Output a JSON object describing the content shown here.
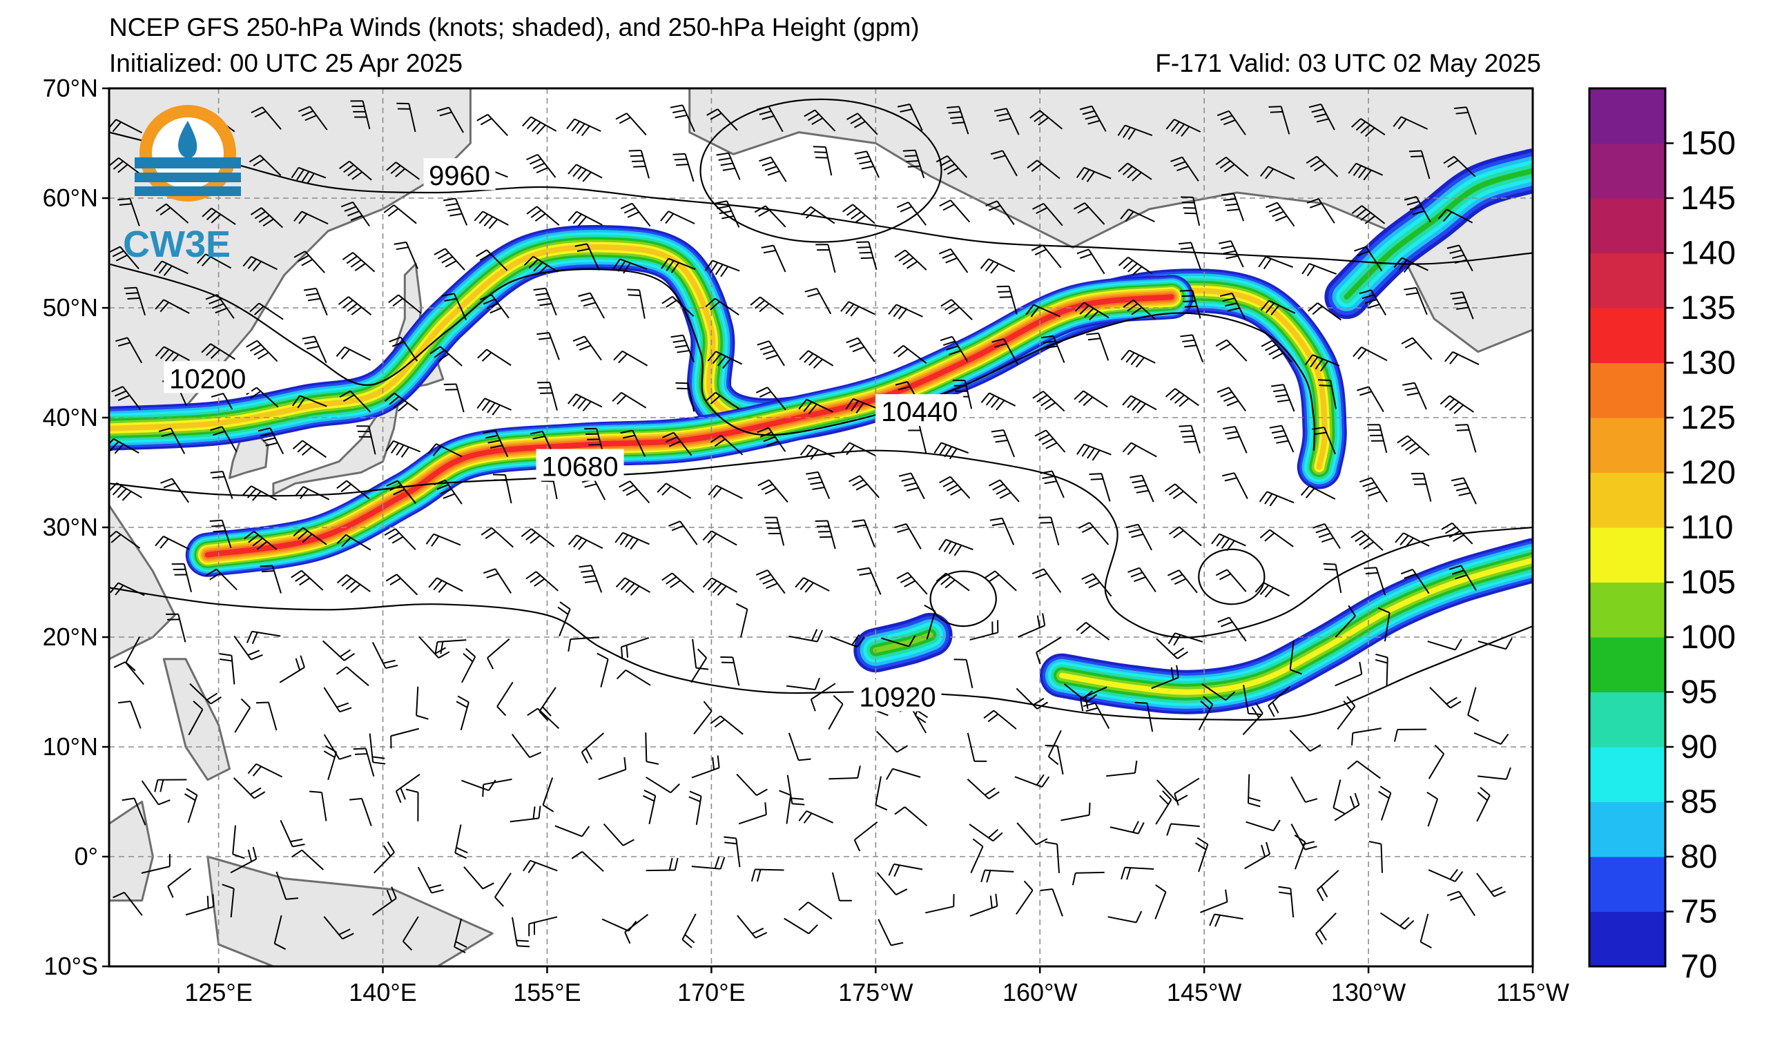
{
  "header": {
    "title": "NCEP GFS 250-hPa Winds (knots; shaded), and 250-hPa Height (gpm)",
    "initialized": "Initialized: 00 UTC 25 Apr 2025",
    "valid": "F-171  Valid: 03 UTC 02 May 2025"
  },
  "logo": {
    "text": "CW3E"
  },
  "axes": {
    "lon_min": 115,
    "lon_max": 245,
    "lat_min": -10,
    "lat_max": 70,
    "lat_ticks": [
      {
        "value": 70,
        "label": "70°N"
      },
      {
        "value": 60,
        "label": "60°N"
      },
      {
        "value": 50,
        "label": "50°N"
      },
      {
        "value": 40,
        "label": "40°N"
      },
      {
        "value": 30,
        "label": "30°N"
      },
      {
        "value": 20,
        "label": "20°N"
      },
      {
        "value": 10,
        "label": "10°N"
      },
      {
        "value": 0,
        "label": "0°"
      },
      {
        "value": -10,
        "label": "10°S"
      }
    ],
    "lon_ticks": [
      {
        "value": 125,
        "label": "125°E"
      },
      {
        "value": 140,
        "label": "140°E"
      },
      {
        "value": 155,
        "label": "155°E"
      },
      {
        "value": 170,
        "label": "170°E"
      },
      {
        "value": 185,
        "label": "175°W"
      },
      {
        "value": 200,
        "label": "160°W"
      },
      {
        "value": 215,
        "label": "145°W"
      },
      {
        "value": 230,
        "label": "130°W"
      },
      {
        "value": 245,
        "label": "115°W"
      }
    ],
    "grid": true
  },
  "colorbar": {
    "levels": [
      70,
      75,
      80,
      85,
      90,
      95,
      100,
      105,
      110,
      120,
      125,
      130,
      135,
      140,
      145,
      150
    ],
    "colors": [
      "#1a22c8",
      "#2448f0",
      "#22bff5",
      "#1fecec",
      "#26dcaa",
      "#1fbe26",
      "#7fd21e",
      "#f5f51e",
      "#f5c81e",
      "#f5a01e",
      "#f5781e",
      "#f52828",
      "#d22846",
      "#b41e5a",
      "#961e78",
      "#7a1e8c"
    ]
  },
  "height_labels": [
    {
      "text": "9960",
      "lon": 147,
      "lat": 62
    },
    {
      "text": "10200",
      "lon": 124,
      "lat": 43.5
    },
    {
      "text": "10440",
      "lon": 189,
      "lat": 40.5
    },
    {
      "text": "10680",
      "lon": 158,
      "lat": 35.5
    },
    {
      "text": "10920",
      "lon": 187,
      "lat": 14.5
    }
  ],
  "jets": [
    {
      "name": "",
      "core_speed": 110,
      "path": [
        [
          115,
          39
        ],
        [
          125,
          39.5
        ],
        [
          133,
          41
        ],
        [
          140,
          42.5
        ],
        [
          146,
          49
        ],
        [
          153,
          54.5
        ],
        [
          161,
          55.5
        ],
        [
          167,
          54
        ],
        [
          170,
          48
        ],
        [
          170,
          42
        ],
        [
          174,
          39.8
        ],
        [
          182,
          40.8
        ],
        [
          193,
          44.5
        ],
        [
          203,
          49.5
        ],
        [
          212,
          51.5
        ],
        [
          220,
          50.5
        ],
        [
          225,
          45
        ],
        [
          226,
          39
        ],
        [
          225.5,
          35.5
        ]
      ]
    },
    {
      "name": "",
      "core_speed": 130,
      "path": [
        [
          124,
          27.5
        ],
        [
          134,
          29
        ],
        [
          142,
          33
        ],
        [
          148,
          36.5
        ],
        [
          158,
          37.5
        ],
        [
          168,
          38
        ],
        [
          178,
          40
        ],
        [
          186,
          42
        ],
        [
          194,
          45.5
        ],
        [
          203,
          50
        ],
        [
          212,
          51
        ]
      ]
    },
    {
      "name": "",
      "core_speed": 100,
      "path": [
        [
          185,
          18.8
        ],
        [
          188,
          19.5
        ],
        [
          190,
          20.2
        ]
      ]
    },
    {
      "name": "",
      "core_speed": 105,
      "path": [
        [
          202,
          16.5
        ],
        [
          208,
          15.5
        ],
        [
          214,
          15
        ],
        [
          220,
          16
        ],
        [
          226,
          19
        ],
        [
          232,
          22.5
        ],
        [
          238,
          25
        ],
        [
          245,
          27
        ]
      ]
    },
    {
      "name": "",
      "core_speed": 95,
      "path": [
        [
          228,
          51
        ],
        [
          232,
          55
        ],
        [
          236,
          58
        ],
        [
          240,
          61
        ],
        [
          245,
          62.5
        ]
      ]
    }
  ],
  "height_contours": [
    [
      [
        115,
        66
      ],
      [
        125,
        63.5
      ],
      [
        135,
        61
      ],
      [
        145,
        60.5
      ],
      [
        155,
        61
      ],
      [
        165,
        60
      ],
      [
        175,
        59
      ],
      [
        185,
        57.5
      ],
      [
        195,
        56
      ],
      [
        205,
        55.5
      ],
      [
        215,
        55
      ],
      [
        225,
        54.5
      ],
      [
        235,
        54
      ],
      [
        245,
        55
      ]
    ],
    [
      [
        115,
        54
      ],
      [
        125,
        51
      ],
      [
        133,
        46
      ],
      [
        139,
        43
      ],
      [
        146,
        48
      ],
      [
        152,
        52.5
      ],
      [
        160,
        53.5
      ],
      [
        166,
        52
      ],
      [
        169,
        46
      ],
      [
        169.5,
        41.5
      ],
      [
        174,
        38.5
      ],
      [
        182,
        39.5
      ],
      [
        192,
        42.5
      ],
      [
        202,
        47
      ],
      [
        212,
        49.5
      ],
      [
        220,
        48
      ],
      [
        224,
        44
      ],
      [
        225,
        40
      ],
      [
        225,
        37
      ]
    ],
    [
      [
        115,
        34
      ],
      [
        125,
        33
      ],
      [
        135,
        33
      ],
      [
        145,
        34
      ],
      [
        155,
        34.5
      ],
      [
        165,
        35
      ],
      [
        175,
        36
      ],
      [
        185,
        37
      ],
      [
        195,
        36
      ],
      [
        203,
        34
      ],
      [
        207,
        30
      ],
      [
        206,
        24
      ],
      [
        209,
        21
      ],
      [
        214,
        20
      ],
      [
        222,
        22
      ],
      [
        228,
        26
      ],
      [
        236,
        29
      ],
      [
        245,
        30
      ]
    ],
    [
      [
        115,
        24.5
      ],
      [
        125,
        23
      ],
      [
        135,
        22.5
      ],
      [
        145,
        23
      ],
      [
        155,
        22
      ],
      [
        160,
        19
      ],
      [
        166,
        16.5
      ],
      [
        175,
        15
      ],
      [
        185,
        15
      ],
      [
        195,
        14.5
      ],
      [
        205,
        13
      ],
      [
        215,
        12.5
      ],
      [
        225,
        13
      ],
      [
        235,
        17
      ],
      [
        245,
        21
      ]
    ]
  ],
  "closed_contours": [
    {
      "lon": 180,
      "lat": 62.5,
      "rlon": 11,
      "rlat": 6.5
    },
    {
      "lon": 193,
      "lat": 23.5,
      "rlon": 3,
      "rlat": 2.5
    },
    {
      "lon": 217.5,
      "lat": 25.5,
      "rlon": 3,
      "rlat": 2.5
    }
  ],
  "land": [
    {
      "name": "",
      "outline": [
        [
          115,
          70
        ],
        [
          148,
          70
        ],
        [
          148,
          65
        ],
        [
          145,
          62
        ],
        [
          140,
          59
        ],
        [
          135,
          57
        ],
        [
          131,
          53
        ],
        [
          128,
          48
        ],
        [
          122,
          41
        ],
        [
          118,
          38
        ],
        [
          115,
          37
        ]
      ]
    },
    {
      "name": "",
      "outline": [
        [
          168,
          70
        ],
        [
          245,
          70
        ],
        [
          245,
          48
        ],
        [
          240,
          46
        ],
        [
          236,
          49
        ],
        [
          232,
          57
        ],
        [
          226,
          59.5
        ],
        [
          218,
          60.5
        ],
        [
          210,
          59
        ],
        [
          203,
          55.5
        ],
        [
          196,
          59
        ],
        [
          190,
          62
        ],
        [
          185,
          65
        ],
        [
          178,
          66
        ],
        [
          172,
          64
        ],
        [
          168,
          66
        ]
      ]
    },
    {
      "name": "",
      "outline": [
        [
          115,
          32
        ],
        [
          119,
          26
        ],
        [
          121,
          22
        ],
        [
          119,
          20
        ],
        [
          115,
          18
        ]
      ]
    },
    {
      "name": "",
      "outline": [
        [
          124,
          0
        ],
        [
          131,
          -2
        ],
        [
          141,
          -3
        ],
        [
          150,
          -7
        ],
        [
          145,
          -10
        ],
        [
          130,
          -10
        ],
        [
          125,
          -8
        ]
      ]
    },
    {
      "name": "",
      "outline": [
        [
          115,
          3
        ],
        [
          118,
          5
        ],
        [
          119,
          0
        ],
        [
          118,
          -4
        ],
        [
          115,
          -4
        ]
      ]
    },
    {
      "name": "",
      "outline": [
        [
          120,
          18
        ],
        [
          122,
          18
        ],
        [
          125,
          12
        ],
        [
          126,
          8
        ],
        [
          124,
          7
        ],
        [
          122,
          10
        ],
        [
          121,
          14
        ]
      ]
    },
    {
      "name": "",
      "outline": [
        [
          130,
          33
        ],
        [
          132,
          34
        ],
        [
          135,
          34.5
        ],
        [
          138,
          35
        ],
        [
          140,
          36
        ],
        [
          141,
          39
        ],
        [
          141.5,
          42
        ],
        [
          140,
          41
        ],
        [
          138,
          38
        ],
        [
          136,
          36
        ],
        [
          133,
          35
        ],
        [
          130,
          34
        ]
      ]
    },
    {
      "name": "",
      "outline": [
        [
          141,
          42.5
        ],
        [
          144,
          43
        ],
        [
          145.5,
          43.5
        ],
        [
          145,
          45
        ],
        [
          142,
          45.5
        ],
        [
          141,
          44
        ]
      ]
    },
    {
      "name": "",
      "outline": [
        [
          141,
          46
        ],
        [
          143,
          46
        ],
        [
          143.5,
          50
        ],
        [
          143,
          54
        ],
        [
          142,
          53
        ],
        [
          142,
          49
        ]
      ]
    },
    {
      "name": "",
      "outline": [
        [
          126,
          34.5
        ],
        [
          127.5,
          35
        ],
        [
          129.3,
          35.5
        ],
        [
          129.5,
          37.5
        ],
        [
          128.5,
          38.5
        ],
        [
          127,
          38
        ],
        [
          126.3,
          36
        ]
      ]
    }
  ]
}
